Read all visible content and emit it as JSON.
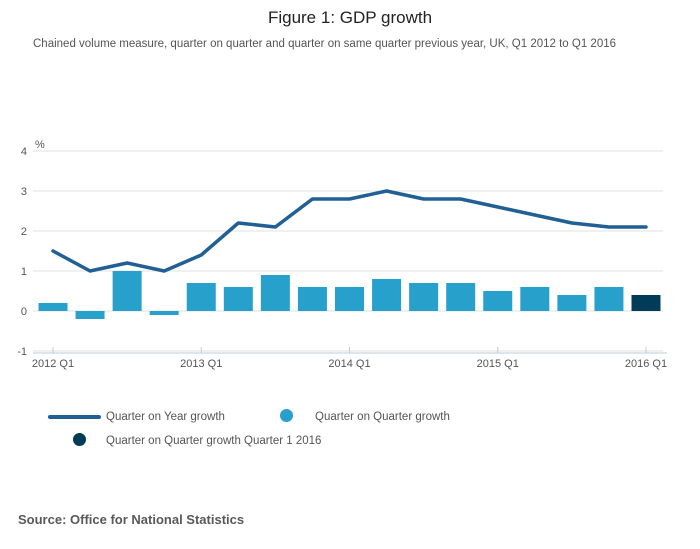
{
  "header": {
    "title": "Figure 1: GDP growth",
    "subtitle": "Chained volume measure, quarter on quarter and quarter on same quarter previous year, UK, Q1 2012 to Q1 2016"
  },
  "chart_data": {
    "type": "bar",
    "title": "Figure 1: GDP growth",
    "unit_label": "%",
    "xlabel": "",
    "ylabel": "%",
    "ylim": [
      -1,
      4
    ],
    "yticks": [
      4,
      3,
      2,
      1,
      0,
      -1
    ],
    "grid": true,
    "categories": [
      "2012 Q1",
      "2012 Q2",
      "2012 Q3",
      "2012 Q4",
      "2013 Q1",
      "2013 Q2",
      "2013 Q3",
      "2013 Q4",
      "2014 Q1",
      "2014 Q2",
      "2014 Q3",
      "2014 Q4",
      "2015 Q1",
      "2015 Q2",
      "2015 Q3",
      "2015 Q4",
      "2016 Q1"
    ],
    "x_tick_indices": [
      0,
      4,
      8,
      12,
      16
    ],
    "x_tick_labels": [
      "2012 Q1",
      "2013 Q1",
      "2014 Q1",
      "2015 Q1",
      "2016 Q1"
    ],
    "series": [
      {
        "name": "Quarter on Quarter growth",
        "type": "bar",
        "color": "#27A0CC",
        "values": [
          0.2,
          -0.2,
          1.0,
          -0.1,
          0.7,
          0.6,
          0.9,
          0.6,
          0.6,
          0.8,
          0.7,
          0.7,
          0.5,
          0.6,
          0.4,
          0.6,
          0.4
        ],
        "highlight": {
          "index": 16,
          "color": "#003C57",
          "name": "Quarter on Quarter growth Quarter 1 2016"
        }
      },
      {
        "name": "Quarter on Year growth",
        "type": "line",
        "color": "#206095",
        "values": [
          1.5,
          1.0,
          1.2,
          1.0,
          1.4,
          2.2,
          2.1,
          2.8,
          2.8,
          3.0,
          2.8,
          2.8,
          2.6,
          2.4,
          2.2,
          2.1,
          2.1
        ]
      }
    ],
    "legend_position": "bottom"
  },
  "legend": {
    "items": [
      {
        "label": "Quarter on Year growth",
        "swatch": "line",
        "color": "#206095"
      },
      {
        "label": "Quarter on Quarter growth",
        "swatch": "circle",
        "color": "#27A0CC"
      },
      {
        "label": "Quarter on Quarter growth Quarter 1 2016",
        "swatch": "circle",
        "color": "#003C57"
      }
    ]
  },
  "footer": {
    "source": "Source: Office for National Statistics"
  },
  "style_colors": {
    "gridline": "#e2e2e2",
    "axis": "#bdccd7",
    "text_gray": "#555555",
    "title": "#222222"
  }
}
